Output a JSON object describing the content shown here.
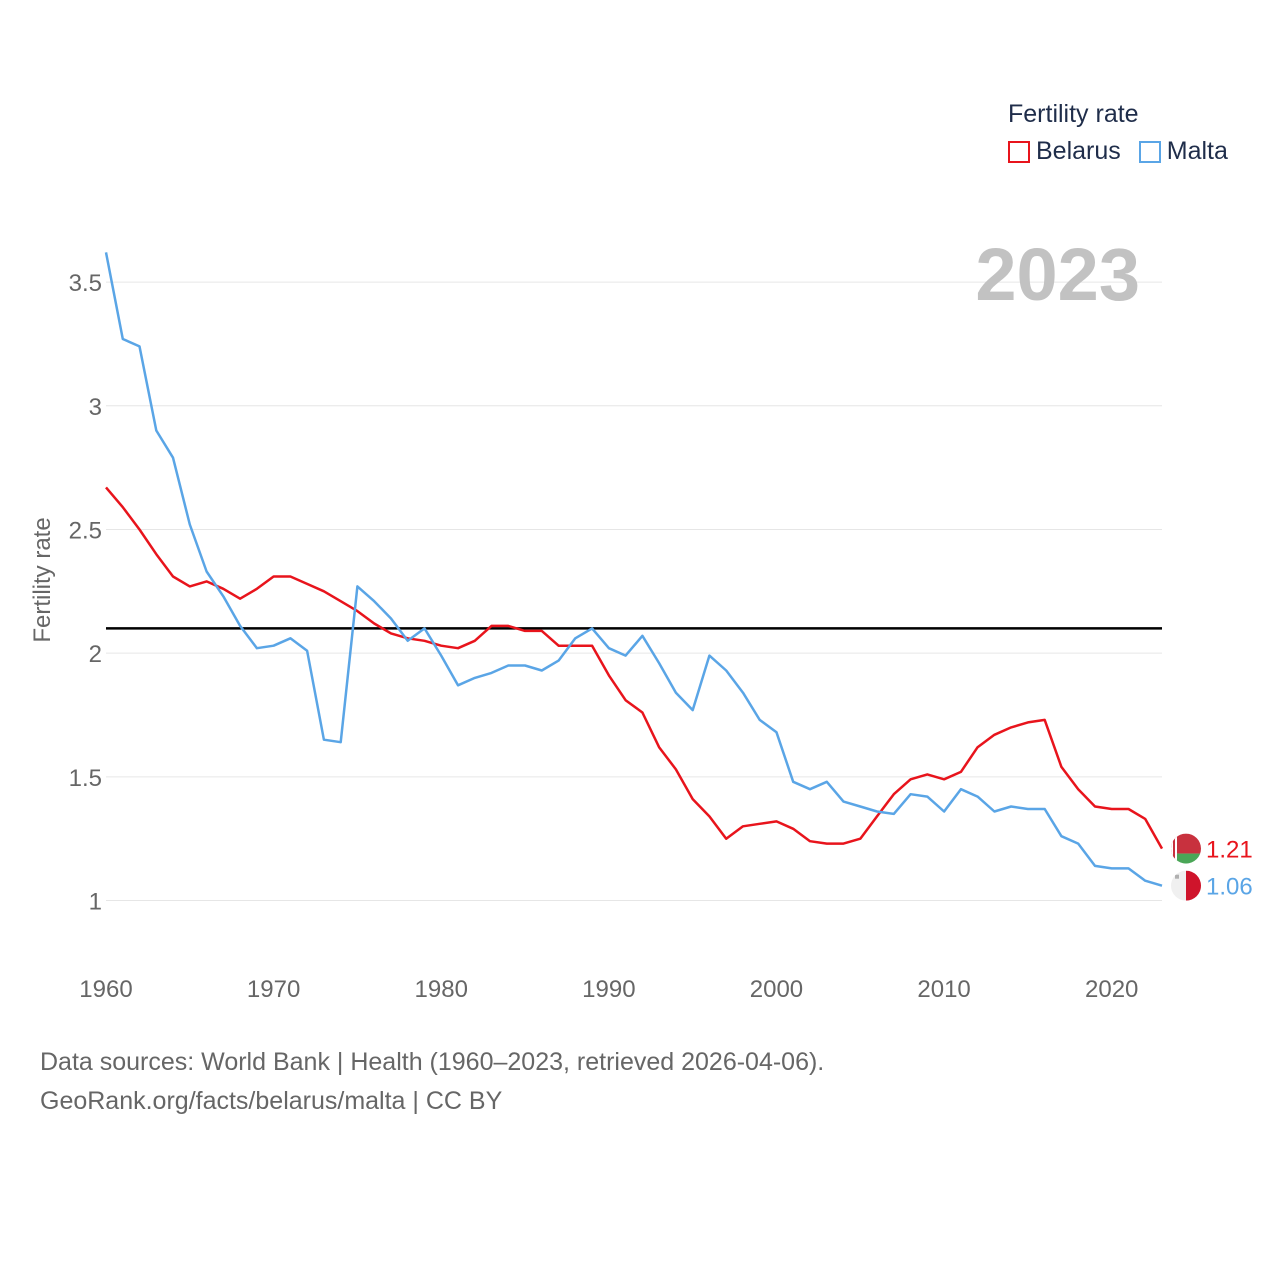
{
  "chart_data": {
    "type": "line",
    "year_label": "2023",
    "ylabel": "Fertility rate",
    "xlabel": "",
    "xlim": [
      1960,
      2023
    ],
    "ylim": [
      0.8,
      3.65
    ],
    "x_ticks": [
      "1960",
      "1970",
      "1980",
      "1990",
      "2000",
      "2010",
      "2020"
    ],
    "y_ticks": [
      "1",
      "1.5",
      "2",
      "2.5",
      "3",
      "3.5"
    ],
    "reference_line": 2.1,
    "legend": {
      "title": "Fertility rate",
      "position": "top-right"
    },
    "x": [
      1960,
      1961,
      1962,
      1963,
      1964,
      1965,
      1966,
      1967,
      1968,
      1969,
      1970,
      1971,
      1972,
      1973,
      1974,
      1975,
      1976,
      1977,
      1978,
      1979,
      1980,
      1981,
      1982,
      1983,
      1984,
      1985,
      1986,
      1987,
      1988,
      1989,
      1990,
      1991,
      1992,
      1993,
      1994,
      1995,
      1996,
      1997,
      1998,
      1999,
      2000,
      2001,
      2002,
      2003,
      2004,
      2005,
      2006,
      2007,
      2008,
      2009,
      2010,
      2011,
      2012,
      2013,
      2014,
      2015,
      2016,
      2017,
      2018,
      2019,
      2020,
      2021,
      2022,
      2023
    ],
    "series": [
      {
        "name": "Belarus",
        "color": "#e8141c",
        "end_label": "1.21",
        "values": [
          2.67,
          2.59,
          2.5,
          2.4,
          2.31,
          2.27,
          2.29,
          2.26,
          2.22,
          2.26,
          2.31,
          2.31,
          2.28,
          2.25,
          2.21,
          2.17,
          2.12,
          2.08,
          2.06,
          2.05,
          2.03,
          2.02,
          2.05,
          2.11,
          2.11,
          2.09,
          2.09,
          2.03,
          2.03,
          2.03,
          1.91,
          1.81,
          1.76,
          1.62,
          1.53,
          1.41,
          1.34,
          1.25,
          1.3,
          1.31,
          1.32,
          1.29,
          1.24,
          1.23,
          1.23,
          1.25,
          1.34,
          1.43,
          1.49,
          1.51,
          1.49,
          1.52,
          1.62,
          1.67,
          1.7,
          1.72,
          1.73,
          1.54,
          1.45,
          1.38,
          1.37,
          1.37,
          1.33,
          1.21
        ]
      },
      {
        "name": "Malta",
        "color": "#5aa5e6",
        "end_label": "1.06",
        "values": [
          3.62,
          3.27,
          3.24,
          2.9,
          2.79,
          2.52,
          2.33,
          2.23,
          2.11,
          2.02,
          2.03,
          2.06,
          2.01,
          1.65,
          1.64,
          2.27,
          2.21,
          2.14,
          2.05,
          2.1,
          1.99,
          1.87,
          1.9,
          1.92,
          1.95,
          1.95,
          1.93,
          1.97,
          2.06,
          2.1,
          2.02,
          1.99,
          2.07,
          1.96,
          1.84,
          1.77,
          1.99,
          1.93,
          1.84,
          1.73,
          1.68,
          1.48,
          1.45,
          1.48,
          1.4,
          1.38,
          1.36,
          1.35,
          1.43,
          1.42,
          1.36,
          1.45,
          1.42,
          1.36,
          1.38,
          1.37,
          1.37,
          1.26,
          1.23,
          1.14,
          1.13,
          1.13,
          1.08,
          1.06
        ]
      }
    ]
  },
  "footer": {
    "line1": "Data sources: World Bank | Health (1960–2023, retrieved 2026-04-06).",
    "line2": "GeoRank.org/facts/belarus/malta | CC BY"
  }
}
